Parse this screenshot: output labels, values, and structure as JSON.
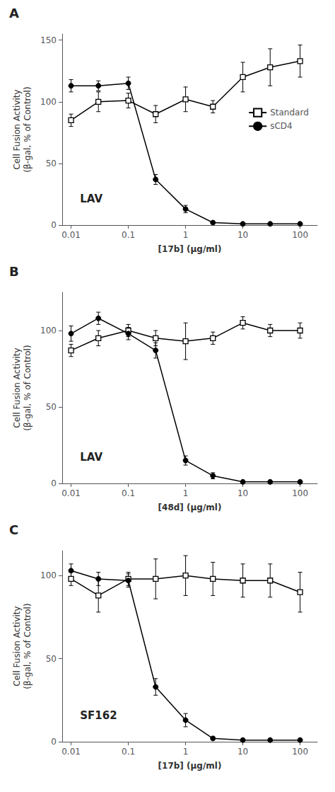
{
  "chart_data": [
    {
      "type": "line",
      "title": "A",
      "annotation": "LAV",
      "xlabel": "[17b] (μg/ml)",
      "ylabel": "Cell Fusion Activity\n(β-gal, % of Control)",
      "log": "x",
      "grid": false,
      "legend": "right",
      "x": [
        0.01,
        0.03,
        0.1,
        0.3,
        1.0,
        3.0,
        10.0,
        30.0,
        100.0
      ],
      "xlim": [
        0.007,
        200
      ],
      "xticks": [
        0.01,
        0.1,
        1,
        10,
        100
      ],
      "ylim": [
        0,
        155
      ],
      "yticks": [
        0,
        50,
        100,
        150
      ],
      "series": [
        {
          "name": "Standard",
          "color": "#000000",
          "marker": "square",
          "values": [
            85,
            100,
            101,
            90,
            102,
            96,
            120,
            128,
            133
          ],
          "yerr": [
            5,
            8,
            6,
            7,
            10,
            5,
            12,
            15,
            13
          ]
        },
        {
          "name": "sCD4",
          "color": "#000000",
          "marker": "circle",
          "values": [
            113,
            113,
            115,
            37,
            13,
            2,
            1,
            1,
            1
          ],
          "yerr": [
            5,
            4,
            5,
            4,
            3,
            1,
            0.5,
            0.5,
            0.5
          ]
        }
      ]
    },
    {
      "type": "line",
      "title": "B",
      "annotation": "LAV",
      "xlabel": "[48d] (μg/ml)",
      "ylabel": "Cell Fusion Activity\n(β-gal, % of Control)",
      "log": "x",
      "grid": false,
      "legend": false,
      "x": [
        0.01,
        0.03,
        0.1,
        0.3,
        1.0,
        3.0,
        10.0,
        30.0,
        100.0
      ],
      "xlim": [
        0.007,
        200
      ],
      "xticks": [
        0.01,
        0.1,
        1,
        10,
        100
      ],
      "ylim": [
        0,
        125
      ],
      "yticks": [
        0,
        50,
        100
      ],
      "series": [
        {
          "name": "Standard",
          "color": "#000000",
          "marker": "square",
          "values": [
            87,
            95,
            100,
            95,
            93,
            95,
            105,
            100,
            100
          ],
          "yerr": [
            4,
            5,
            4,
            5,
            12,
            4,
            4,
            4,
            5
          ]
        },
        {
          "name": "sCD4",
          "color": "#000000",
          "marker": "circle",
          "values": [
            98,
            108,
            98,
            87,
            15,
            5,
            1,
            1,
            1
          ],
          "yerr": [
            5,
            4,
            4,
            5,
            3,
            2,
            0.5,
            0.5,
            0.5
          ]
        }
      ]
    },
    {
      "type": "line",
      "title": "C",
      "annotation": "SF162",
      "xlabel": "[17b] (μg/ml)",
      "ylabel": "Cell Fusion Activity\n(β-gal, % of Control)",
      "log": "x",
      "grid": false,
      "legend": false,
      "x": [
        0.01,
        0.03,
        0.1,
        0.3,
        1.0,
        3.0,
        10.0,
        30.0,
        100.0
      ],
      "xlim": [
        0.007,
        200
      ],
      "xticks": [
        0.01,
        0.1,
        1,
        10,
        100
      ],
      "ylim": [
        0,
        115
      ],
      "yticks": [
        0,
        50,
        100
      ],
      "series": [
        {
          "name": "Standard",
          "color": "#000000",
          "marker": "square",
          "values": [
            98,
            88,
            98,
            98,
            100,
            98,
            97,
            97,
            90
          ],
          "yerr": [
            4,
            10,
            4,
            12,
            12,
            10,
            10,
            10,
            12
          ]
        },
        {
          "name": "sCD4",
          "color": "#000000",
          "marker": "circle",
          "values": [
            103,
            98,
            97,
            33,
            13,
            2,
            1,
            1,
            1
          ],
          "yerr": [
            4,
            4,
            4,
            5,
            4,
            1,
            0.5,
            0.5,
            0.5
          ]
        }
      ]
    }
  ]
}
